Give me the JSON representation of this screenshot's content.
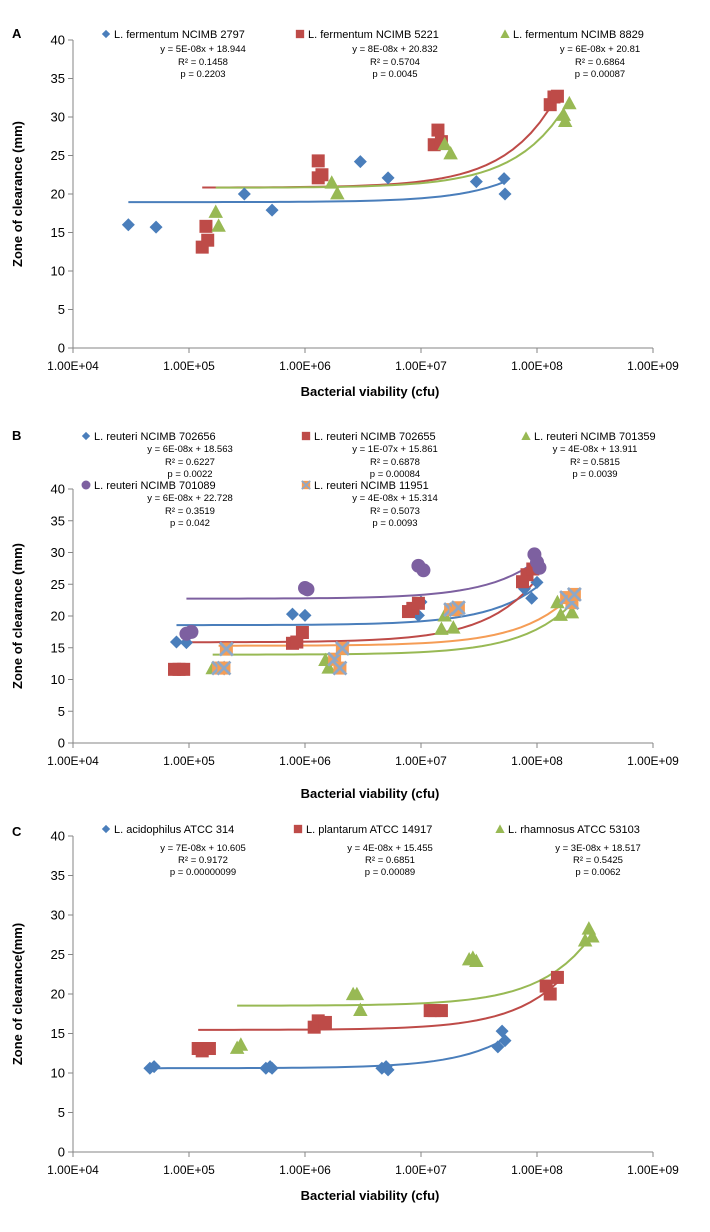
{
  "chart_data": [
    {
      "type": "scatter",
      "panel_label": "A",
      "xlabel": "Bacterial viability (cfu)",
      "ylabel": "Zone of clearance (mm)",
      "xscale": "log",
      "xlim": [
        10000,
        1000000000
      ],
      "ylim": [
        0,
        40
      ],
      "x_tick_labels": [
        "1.00E+04",
        "1.00E+05",
        "1.00E+06",
        "1.00E+07",
        "1.00E+08",
        "1.00E+09"
      ],
      "y_tick_labels": [
        "0",
        "5",
        "10",
        "15",
        "20",
        "25",
        "30",
        "35",
        "40"
      ],
      "grid": false,
      "legend_position": "top",
      "series": [
        {
          "name": "L. fermentum NCIMB 2797",
          "color": "#4a7ebb",
          "marker": "diamond",
          "trendline": "#4a7ebb",
          "equation": "y = 5E-08x + 18.944",
          "r2": "R² = 0.1458",
          "p": "p = 0.2203",
          "points": [
            [
              30000,
              16.0
            ],
            [
              52000,
              15.7
            ],
            [
              300000,
              20.0
            ],
            [
              520000,
              17.9
            ],
            [
              3000000,
              24.2
            ],
            [
              5200000,
              22.1
            ],
            [
              30000000,
              21.6
            ],
            [
              52000000,
              22.0
            ],
            [
              53000000,
              20.0
            ]
          ],
          "fit_x": [
            30000,
            55000000
          ]
        },
        {
          "name": "L. fermentum  NCIMB 5221",
          "color": "#be4b48",
          "marker": "square",
          "trendline": "#be4b48",
          "equation": "y = 8E-08x + 20.832",
          "r2": "R² = 0.5704",
          "p": "p = 0.0045",
          "points": [
            [
              130000,
              13.1
            ],
            [
              140000,
              15.8
            ],
            [
              145000,
              14.0
            ],
            [
              1300000,
              24.3
            ],
            [
              1300000,
              22.1
            ],
            [
              1400000,
              22.5
            ],
            [
              13000000,
              26.4
            ],
            [
              14000000,
              28.3
            ],
            [
              15000000,
              26.8
            ],
            [
              130000000,
              31.6
            ],
            [
              140000000,
              32.6
            ],
            [
              150000000,
              32.7
            ]
          ],
          "fit_x": [
            130000,
            150000000
          ]
        },
        {
          "name": "L. fermentum NCIMB 8829",
          "color": "#98b954",
          "marker": "triangle",
          "trendline": "#98b954",
          "equation": "y = 6E-08x + 20.81",
          "r2": "R² = 0.6864",
          "p": "p = 0.00087",
          "points": [
            [
              170000,
              17.7
            ],
            [
              180000,
              15.9
            ],
            [
              1700000,
              21.5
            ],
            [
              1900000,
              20.1
            ],
            [
              16000000,
              26.5
            ],
            [
              18000000,
              25.3
            ],
            [
              170000000,
              30.3
            ],
            [
              175000000,
              29.5
            ],
            [
              190000000,
              31.8
            ]
          ],
          "fit_x": [
            170000,
            190000000
          ]
        }
      ]
    },
    {
      "type": "scatter",
      "panel_label": "B",
      "xlabel": "Bacterial viability (cfu)",
      "ylabel": "Zone of clearance (mm)",
      "xscale": "log",
      "xlim": [
        10000,
        1000000000
      ],
      "ylim": [
        0,
        40
      ],
      "x_tick_labels": [
        "1.00E+04",
        "1.00E+05",
        "1.00E+06",
        "1.00E+07",
        "1.00E+08",
        "1.00E+09"
      ],
      "y_tick_labels": [
        "0",
        "5",
        "10",
        "15",
        "20",
        "25",
        "30",
        "35",
        "40"
      ],
      "grid": false,
      "legend_position": "top",
      "series": [
        {
          "name": "L. reuteri NCIMB 702656",
          "color": "#4a7ebb",
          "marker": "diamond",
          "trendline": "#4a7ebb",
          "equation": "y = 6E-08x + 18.563",
          "r2": "R² = 0.6227",
          "p": "p = 0.0022",
          "points": [
            [
              78000,
              15.9
            ],
            [
              95000,
              15.8
            ],
            [
              780000,
              20.3
            ],
            [
              1000000,
              20.1
            ],
            [
              9500000,
              20.1
            ],
            [
              10000000,
              22.2
            ],
            [
              78000000,
              24.3
            ],
            [
              90000000,
              22.8
            ],
            [
              100000000,
              25.3
            ]
          ],
          "fit_x": [
            78000,
            100000000
          ]
        },
        {
          "name": "L. reuteri NCIMB 702655",
          "color": "#be4b48",
          "marker": "square",
          "trendline": "#be4b48",
          "equation": "y = 1E-07x + 15.861",
          "r2": "R² = 0.6878",
          "p": "p = 0.00084",
          "points": [
            [
              75000,
              11.6
            ],
            [
              82000,
              11.6
            ],
            [
              90000,
              11.6
            ],
            [
              780000,
              15.7
            ],
            [
              850000,
              15.9
            ],
            [
              950000,
              17.4
            ],
            [
              7800000,
              20.7
            ],
            [
              8500000,
              21.2
            ],
            [
              9500000,
              22.0
            ],
            [
              75000000,
              25.4
            ],
            [
              82000000,
              26.5
            ],
            [
              92000000,
              27.4
            ]
          ],
          "fit_x": [
            75000,
            95000000
          ]
        },
        {
          "name": "L. reuteri NCIMB 701359",
          "color": "#98b954",
          "marker": "triangle",
          "trendline": "#98b954",
          "equation": "y = 4E-08x + 13.911",
          "r2": "R² = 0.5815",
          "p": "p = 0.0039",
          "points": [
            [
              160000,
              11.8
            ],
            [
              1500000,
              13.1
            ],
            [
              1600000,
              11.9
            ],
            [
              15000000,
              18.0
            ],
            [
              16000000,
              20.1
            ],
            [
              19000000,
              18.2
            ],
            [
              150000000,
              22.2
            ],
            [
              160000000,
              20.2
            ],
            [
              200000000,
              20.6
            ]
          ],
          "fit_x": [
            160000,
            200000000
          ]
        },
        {
          "name": "L. reuteri NCIMB 701089",
          "color": "#7d60a0",
          "marker": "circle",
          "trendline": "#7d60a0",
          "equation": "y = 6E-08x + 22.728",
          "r2": "R² = 0.3519",
          "p": "p = 0.042",
          "points": [
            [
              95000,
              17.2
            ],
            [
              105000,
              17.5
            ],
            [
              1000000,
              24.4
            ],
            [
              1050000,
              24.2
            ],
            [
              9500000,
              27.9
            ],
            [
              10500000,
              27.2
            ],
            [
              95000000,
              29.7
            ],
            [
              100000000,
              28.5
            ],
            [
              105000000,
              27.6
            ]
          ],
          "fit_x": [
            95000,
            105000000
          ]
        },
        {
          "name": "L. reuteri NCIMB 11951",
          "color": "#f59d56",
          "marker": "xsquare",
          "trendline": "#f59d56",
          "equation": "y = 4E-08x + 15.314",
          "r2": "R² = 0.5073",
          "p": "p = 0.0093",
          "points": [
            [
              180000,
              11.8
            ],
            [
              200000,
              11.8
            ],
            [
              210000,
              14.8
            ],
            [
              1800000,
              13.2
            ],
            [
              2000000,
              11.8
            ],
            [
              2100000,
              14.9
            ],
            [
              18000000,
              21.0
            ],
            [
              20000000,
              21.0
            ],
            [
              21000000,
              21.3
            ],
            [
              180000000,
              22.9
            ],
            [
              200000000,
              22.1
            ],
            [
              210000000,
              23.4
            ]
          ],
          "fit_x": [
            180000,
            210000000
          ]
        }
      ]
    },
    {
      "type": "scatter",
      "panel_label": "C",
      "xlabel": "Bacterial viability (cfu)",
      "ylabel": "Zone of clearance(mm)",
      "xscale": "log",
      "xlim": [
        10000,
        1000000000
      ],
      "ylim": [
        0,
        40
      ],
      "x_tick_labels": [
        "1.00E+04",
        "1.00E+05",
        "1.00E+06",
        "1.00E+07",
        "1.00E+08",
        "1.00E+09"
      ],
      "y_tick_labels": [
        "0",
        "5",
        "10",
        "15",
        "20",
        "25",
        "30",
        "35",
        "40"
      ],
      "grid": false,
      "legend_position": "top",
      "series": [
        {
          "name": "L. acidophilus ATCC 314",
          "color": "#4a7ebb",
          "marker": "diamond",
          "trendline": "#4a7ebb",
          "equation": "y = 7E-08x + 10.605",
          "r2": "R² = 0.9172",
          "p": "p = 0.00000099",
          "points": [
            [
              46000,
              10.6
            ],
            [
              50000,
              10.8
            ],
            [
              460000,
              10.6
            ],
            [
              500000,
              10.8
            ],
            [
              520000,
              10.6
            ],
            [
              4600000,
              10.6
            ],
            [
              5000000,
              10.8
            ],
            [
              5200000,
              10.4
            ],
            [
              46000000,
              13.3
            ],
            [
              50000000,
              15.3
            ],
            [
              53000000,
              14.1
            ]
          ],
          "fit_x": [
            46000,
            53000000
          ]
        },
        {
          "name": "L. plantarum ATCC 14917",
          "color": "#be4b48",
          "marker": "square",
          "trendline": "#be4b48",
          "equation": "y = 4E-08x + 15.455",
          "r2": "R² = 0.6851",
          "p": "p = 0.00089",
          "points": [
            [
              120000,
              13.1
            ],
            [
              130000,
              12.8
            ],
            [
              150000,
              13.1
            ],
            [
              1200000,
              15.8
            ],
            [
              1300000,
              16.6
            ],
            [
              1500000,
              16.4
            ],
            [
              12000000,
              17.9
            ],
            [
              13000000,
              17.9
            ],
            [
              15000000,
              17.9
            ],
            [
              120000000,
              21.0
            ],
            [
              130000000,
              20.0
            ],
            [
              150000000,
              22.1
            ]
          ],
          "fit_x": [
            120000,
            150000000
          ]
        },
        {
          "name": "L. rhamnosus ATCC 53103",
          "color": "#98b954",
          "marker": "triangle",
          "trendline": "#98b954",
          "equation": "y = 3E-08x + 18.517",
          "r2": "R² = 0.5425",
          "p": "p = 0.0062",
          "points": [
            [
              260000,
              13.2
            ],
            [
              280000,
              13.6
            ],
            [
              2600000,
              20.0
            ],
            [
              2800000,
              20.0
            ],
            [
              3000000,
              18.0
            ],
            [
              26000000,
              24.4
            ],
            [
              28000000,
              24.6
            ],
            [
              30000000,
              24.2
            ],
            [
              260000000,
              26.8
            ],
            [
              280000000,
              28.3
            ],
            [
              300000000,
              27.3
            ]
          ],
          "fit_x": [
            260000,
            300000000
          ]
        }
      ]
    }
  ]
}
